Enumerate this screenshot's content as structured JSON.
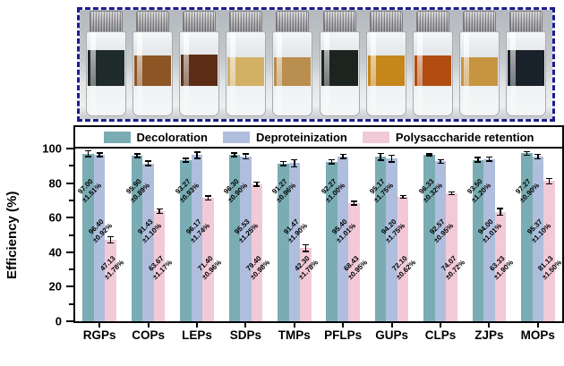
{
  "figure": {
    "photo": {
      "frame_color": "#1d1d8e",
      "vials": [
        {
          "color": "#1e2b28",
          "h": 40
        },
        {
          "color": "#8d5524",
          "h": 34
        },
        {
          "color": "#5c2c15",
          "h": 35
        },
        {
          "color": "#d2b166",
          "h": 32
        },
        {
          "color": "#b98e4e",
          "h": 32
        },
        {
          "color": "#1c241f",
          "h": 40
        },
        {
          "color": "#c5861c",
          "h": 34
        },
        {
          "color": "#b24c10",
          "h": 34
        },
        {
          "color": "#c79440",
          "h": 32
        },
        {
          "color": "#19212b",
          "h": 40
        }
      ]
    },
    "legend": {
      "items": [
        {
          "label": "Decoloration",
          "color": "#7aacb4"
        },
        {
          "label": "Deproteinization",
          "color": "#afbedd"
        },
        {
          "label": "Polysaccharide retention",
          "color": "#f2c9d7"
        }
      ]
    },
    "chart_data": {
      "type": "bar",
      "title": "",
      "xlabel": "",
      "ylabel": "Efficiency (%)",
      "ylim": [
        0,
        100
      ],
      "yticks": [
        0,
        20,
        40,
        60,
        80,
        100
      ],
      "minor_tick_step": 10,
      "grid": false,
      "legend_position": "top",
      "categories": [
        "RGPs",
        "COPs",
        "LEPs",
        "SDPs",
        "TMPs",
        "PFLPs",
        "GUPs",
        "CLPs",
        "ZJPs",
        "MOPs"
      ],
      "series": [
        {
          "name": "Decoloration",
          "color": "#7aacb4",
          "values": [
            97.0,
            95.9,
            93.27,
            96.3,
            91.27,
            92.27,
            95.17,
            96.33,
            93.5,
            97.27
          ],
          "errors": [
            1.51,
            0.89,
            0.93,
            0.9,
            0.96,
            1.0,
            1.75,
            0.32,
            1.2,
            0.9
          ],
          "value_labels": [
            "97.00",
            "95.90",
            "93.27",
            "96.30",
            "91.27",
            "92.27",
            "95.17",
            "96.33",
            "93.50",
            "97.27"
          ],
          "error_labels": [
            "±1.51%",
            "±0.89%",
            "±0.93%",
            "±0.90%",
            "±0.96%",
            "±1.00%",
            "±1.75%",
            "±0.32%",
            "±1.20%",
            "±0.90%"
          ]
        },
        {
          "name": "Deproteinization",
          "color": "#afbedd",
          "values": [
            96.4,
            91.43,
            96.17,
            95.53,
            91.47,
            95.4,
            94.2,
            92.57,
            94.0,
            95.37
          ],
          "errors": [
            0.92,
            1.1,
            1.74,
            1.25,
            1.9,
            1.01,
            1.75,
            0.95,
            1.01,
            1.1
          ],
          "value_labels": [
            "96.40",
            "91.43",
            "96.17",
            "95.53",
            "91.47",
            "95.40",
            "94.20",
            "92.57",
            "94.00",
            "95.37"
          ],
          "error_labels": [
            "±0.92%",
            "±1.10%",
            "±1.74%",
            "±1.25%",
            "±1.90%",
            "±1.01%",
            "±1.75%",
            "±0.95%",
            "±1.01%",
            "±1.10%"
          ]
        },
        {
          "name": "Polysaccharide retention",
          "color": "#f2c9d7",
          "values": [
            47.13,
            63.67,
            71.4,
            79.4,
            42.3,
            68.43,
            72.1,
            74.07,
            63.33,
            81.13
          ],
          "errors": [
            1.78,
            1.17,
            0.96,
            0.98,
            1.78,
            0.95,
            0.62,
            0.72,
            1.9,
            1.5
          ],
          "value_labels": [
            "47.13",
            "63.67",
            "71.40",
            "79.40",
            "42.30",
            "68.43",
            "72.10",
            "74.07",
            "63.33",
            "81.13"
          ],
          "error_labels": [
            "±1.78%",
            "±1.17%",
            "±0.96%",
            "±0.98%",
            "±1.78%",
            "±0.95%",
            "±0.62%",
            "±0.72%",
            "±1.90%",
            "±1.50%"
          ]
        }
      ]
    }
  }
}
